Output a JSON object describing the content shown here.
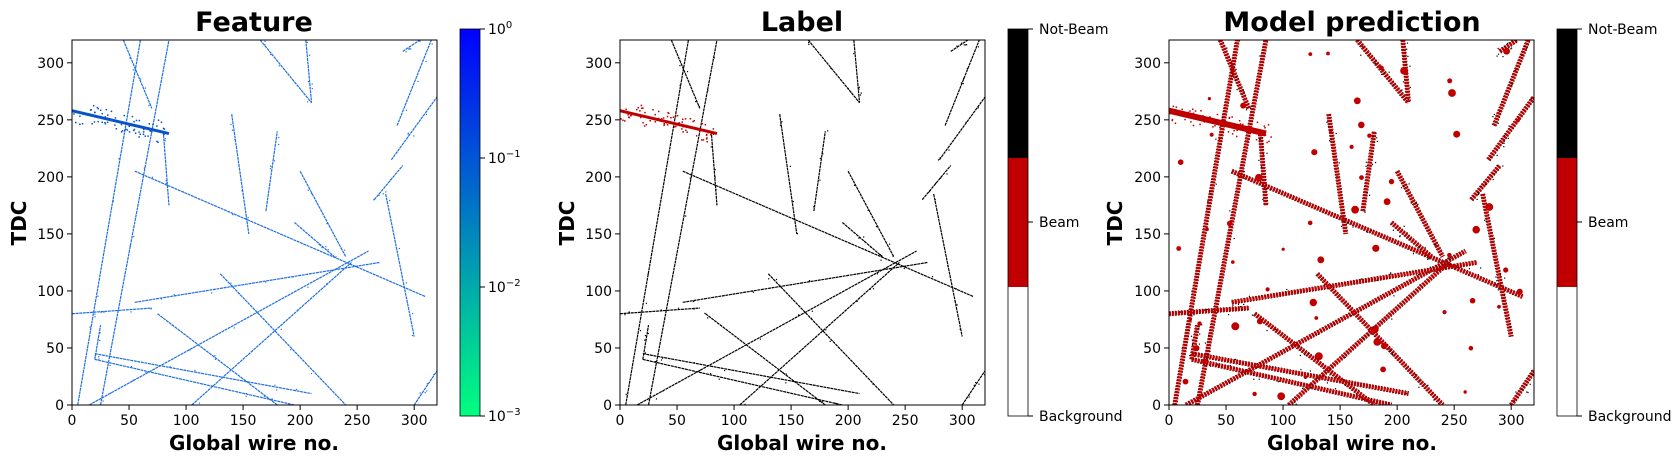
{
  "chart_data": [
    {
      "type": "heatmap",
      "title": "Feature",
      "xlabel": "Global wire no.",
      "ylabel": "TDC",
      "xlim": [
        0,
        320
      ],
      "ylim": [
        0,
        320
      ],
      "xticks": [
        "0",
        "50",
        "100",
        "150",
        "200",
        "250",
        "300"
      ],
      "yticks": [
        "0",
        "50",
        "100",
        "150",
        "200",
        "250",
        "300"
      ],
      "colorbar": {
        "scale": "log",
        "range": [
          0.001,
          1
        ],
        "ticks": [
          {
            "base": "10",
            "exp": "0",
            "value": 1
          },
          {
            "base": "10",
            "exp": "−1",
            "value": 0.1
          },
          {
            "base": "10",
            "exp": "−2",
            "value": 0.01
          },
          {
            "base": "10",
            "exp": "−3",
            "value": 0.001
          }
        ],
        "colors": [
          "#00ff80",
          "#0000ff"
        ]
      },
      "track_color": "#1f6fe0",
      "beam_cluster_color": "#0a52c8",
      "tracks": [
        {
          "x": [
            5,
            60
          ],
          "y": [
            0,
            320
          ]
        },
        {
          "x": [
            25,
            85
          ],
          "y": [
            0,
            320
          ]
        },
        {
          "x": [
            55,
            310
          ],
          "y": [
            205,
            95
          ]
        },
        {
          "x": [
            15,
            260
          ],
          "y": [
            0,
            135
          ]
        },
        {
          "x": [
            55,
            270
          ],
          "y": [
            90,
            125
          ]
        },
        {
          "x": [
            105,
            245
          ],
          "y": [
            0,
            125
          ]
        },
        {
          "x": [
            130,
            240
          ],
          "y": [
            115,
            0
          ]
        },
        {
          "x": [
            20,
            210
          ],
          "y": [
            45,
            10
          ]
        },
        {
          "x": [
            20,
            195
          ],
          "y": [
            40,
            0
          ]
        },
        {
          "x": [
            75,
            180
          ],
          "y": [
            80,
            0
          ]
        },
        {
          "x": [
            165,
            210
          ],
          "y": [
            320,
            265
          ]
        },
        {
          "x": [
            265,
            290
          ],
          "y": [
            180,
            210
          ]
        },
        {
          "x": [
            280,
            320
          ],
          "y": [
            215,
            270
          ]
        },
        {
          "x": [
            285,
            315
          ],
          "y": [
            245,
            320
          ]
        },
        {
          "x": [
            275,
            300
          ],
          "y": [
            185,
            60
          ]
        },
        {
          "x": [
            205,
            210
          ],
          "y": [
            320,
            265
          ]
        },
        {
          "x": [
            140,
            155
          ],
          "y": [
            255,
            150
          ]
        },
        {
          "x": [
            80,
            85
          ],
          "y": [
            240,
            175
          ]
        },
        {
          "x": [
            200,
            240
          ],
          "y": [
            205,
            130
          ]
        },
        {
          "x": [
            0,
            70
          ],
          "y": [
            80,
            85
          ]
        },
        {
          "x": [
            290,
            305
          ],
          "y": [
            310,
            320
          ]
        },
        {
          "x": [
            300,
            320
          ],
          "y": [
            0,
            30
          ]
        },
        {
          "x": [
            170,
            180
          ],
          "y": [
            170,
            240
          ]
        },
        {
          "x": [
            195,
            230
          ],
          "y": [
            160,
            130
          ]
        },
        {
          "x": [
            20,
            25
          ],
          "y": [
            40,
            70
          ]
        },
        {
          "x": [
            45,
            70
          ],
          "y": [
            320,
            260
          ]
        }
      ],
      "beam_cluster": {
        "x": [
          0,
          85
        ],
        "y": [
          258,
          238
        ]
      }
    },
    {
      "type": "heatmap",
      "title": "Label",
      "xlabel": "Global wire no.",
      "ylabel": "TDC",
      "xlim": [
        0,
        320
      ],
      "ylim": [
        0,
        320
      ],
      "xticks": [
        "0",
        "50",
        "100",
        "150",
        "200",
        "250",
        "300"
      ],
      "yticks": [
        "0",
        "50",
        "100",
        "150",
        "200",
        "250",
        "300"
      ],
      "colorbar": {
        "categories": [
          "Background",
          "Beam",
          "Not-Beam"
        ],
        "colors": [
          "#ffffff",
          "#c00000",
          "#000000"
        ]
      },
      "track_color": "#000000",
      "beam_cluster_color": "#c00000"
    },
    {
      "type": "heatmap",
      "title": "Model prediction",
      "xlabel": "Global wire no.",
      "ylabel": "TDC",
      "xlim": [
        0,
        320
      ],
      "ylim": [
        0,
        320
      ],
      "xticks": [
        "0",
        "50",
        "100",
        "150",
        "200",
        "250",
        "300"
      ],
      "yticks": [
        "0",
        "50",
        "100",
        "150",
        "200",
        "250",
        "300"
      ],
      "colorbar": {
        "categories": [
          "Background",
          "Beam",
          "Not-Beam"
        ],
        "colors": [
          "#ffffff",
          "#c00000",
          "#000000"
        ]
      },
      "track_color": "#c00000",
      "edge_color": "#000000",
      "blob_color": "#c00000"
    }
  ]
}
